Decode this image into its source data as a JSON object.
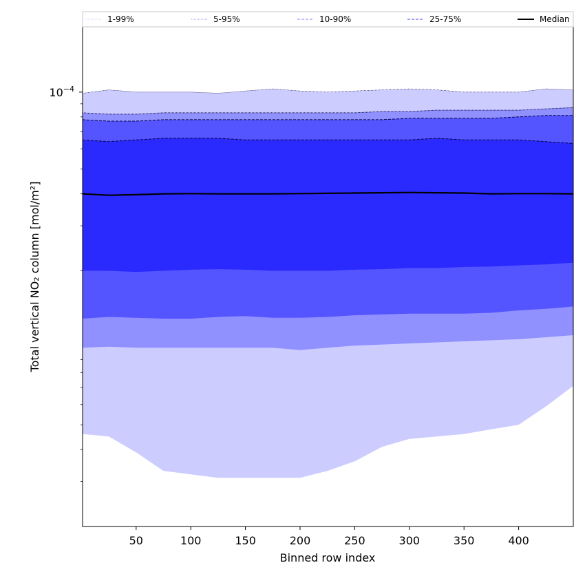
{
  "chart_data": {
    "type": "area",
    "title": "",
    "xlabel": "Binned row index",
    "ylabel": "Total vertical NO₂ column [mol/m²]",
    "yscale": "log",
    "ylim": [
      2e-06,
      0.00018
    ],
    "xlim": [
      1,
      450
    ],
    "x_ticks": [
      50,
      100,
      150,
      200,
      250,
      300,
      350,
      400
    ],
    "y_tick_label": "10^-4",
    "y_tick_value": 0.0001,
    "grid": false,
    "legend_placement": "top, spanning full width",
    "colors": {
      "band_1_99": "#ccccff",
      "band_5_95": "#9090ff",
      "band_10_90": "#5555ff",
      "band_25_75": "#2a2aff",
      "median": "#000000"
    },
    "x": [
      1,
      25,
      50,
      75,
      100,
      125,
      150,
      175,
      200,
      225,
      250,
      275,
      300,
      325,
      350,
      375,
      400,
      425,
      450
    ],
    "series": [
      {
        "name": "1-99%",
        "style": "dotted thin",
        "upper": [
          9.9e-05,
          0.000102,
          0.0001,
          0.0001,
          0.0001,
          9.9e-05,
          0.000101,
          0.000103,
          0.000101,
          0.0001,
          0.000101,
          0.000102,
          0.000103,
          0.000102,
          0.0001,
          0.0001,
          0.0001,
          0.000103,
          0.000102
        ],
        "lower": [
          4.6e-06,
          4.5e-06,
          3.9e-06,
          3.3e-06,
          3.2e-06,
          3.1e-06,
          3.1e-06,
          3.1e-06,
          3.1e-06,
          3.3e-06,
          3.6e-06,
          4.1e-06,
          4.4e-06,
          4.5e-06,
          4.6e-06,
          4.8e-06,
          5e-06,
          5.9e-06,
          7.1e-06
        ]
      },
      {
        "name": "5-95%",
        "style": "dotted",
        "upper": [
          8.3e-05,
          8.2e-05,
          8.2e-05,
          8.3e-05,
          8.3e-05,
          8.3e-05,
          8.3e-05,
          8.3e-05,
          8.3e-05,
          8.3e-05,
          8.3e-05,
          8.4e-05,
          8.4e-05,
          8.5e-05,
          8.5e-05,
          8.5e-05,
          8.5e-05,
          8.6e-05,
          8.7e-05
        ],
        "lower": [
          1e-05,
          1.01e-05,
          1e-05,
          1e-05,
          1e-05,
          1e-05,
          1e-05,
          1e-05,
          9.8e-06,
          1e-05,
          1.02e-05,
          1.03e-05,
          1.04e-05,
          1.05e-05,
          1.06e-05,
          1.07e-05,
          1.08e-05,
          1.1e-05,
          1.12e-05
        ]
      },
      {
        "name": "10-90%",
        "style": "dashed",
        "upper": [
          7.8e-05,
          7.7e-05,
          7.7e-05,
          7.8e-05,
          7.8e-05,
          7.8e-05,
          7.8e-05,
          7.8e-05,
          7.8e-05,
          7.8e-05,
          7.8e-05,
          7.8e-05,
          7.9e-05,
          7.9e-05,
          7.9e-05,
          7.9e-05,
          8e-05,
          8.1e-05,
          8.1e-05
        ],
        "lower": [
          1.3e-05,
          1.32e-05,
          1.31e-05,
          1.3e-05,
          1.3e-05,
          1.32e-05,
          1.33e-05,
          1.31e-05,
          1.31e-05,
          1.32e-05,
          1.34e-05,
          1.35e-05,
          1.36e-05,
          1.36e-05,
          1.36e-05,
          1.37e-05,
          1.4e-05,
          1.42e-05,
          1.45e-05
        ]
      },
      {
        "name": "25-75%",
        "style": "dashed",
        "upper": [
          6.5e-05,
          6.4e-05,
          6.5e-05,
          6.6e-05,
          6.6e-05,
          6.6e-05,
          6.5e-05,
          6.5e-05,
          6.5e-05,
          6.5e-05,
          6.5e-05,
          6.5e-05,
          6.5e-05,
          6.6e-05,
          6.5e-05,
          6.5e-05,
          6.5e-05,
          6.4e-05,
          6.3e-05
        ],
        "lower": [
          2e-05,
          2e-05,
          1.98e-05,
          2e-05,
          2.02e-05,
          2.03e-05,
          2.02e-05,
          2e-05,
          2e-05,
          2e-05,
          2.02e-05,
          2.03e-05,
          2.05e-05,
          2.05e-05,
          2.07e-05,
          2.08e-05,
          2.1e-05,
          2.12e-05,
          2.15e-05
        ]
      },
      {
        "name": "Median",
        "style": "solid thick",
        "values": [
          4e-05,
          3.95e-05,
          3.97e-05,
          4e-05,
          4.01e-05,
          4e-05,
          4e-05,
          4e-05,
          4.01e-05,
          4.02e-05,
          4.03e-05,
          4.04e-05,
          4.05e-05,
          4.04e-05,
          4.03e-05,
          4e-05,
          4.01e-05,
          4.01e-05,
          4e-05
        ]
      }
    ]
  }
}
